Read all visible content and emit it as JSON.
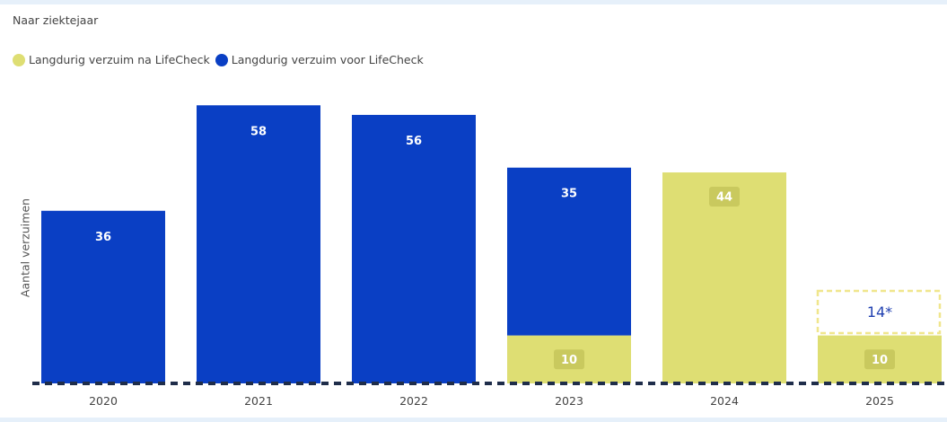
{
  "chart_data": {
    "type": "bar",
    "title": "Naar ziektejaar",
    "ylabel": "Aantal verzuimen",
    "xlabel": "",
    "categories": [
      "2020",
      "2021",
      "2022",
      "2023",
      "2024",
      "2025"
    ],
    "series": [
      {
        "name": "Langdurig verzuim na LifeCheck",
        "color": "#dede73",
        "values": [
          0,
          0,
          0,
          10,
          44,
          10
        ]
      },
      {
        "name": "Langdurig verzuim voor LifeCheck",
        "color": "#0a3fc4",
        "values": [
          36,
          58,
          56,
          35,
          0,
          0
        ]
      }
    ],
    "stacked": true,
    "legend_position": "top-left",
    "grid": false,
    "annotations": [
      {
        "category": "2025",
        "text": "14*",
        "style": "dashed-box"
      }
    ]
  }
}
